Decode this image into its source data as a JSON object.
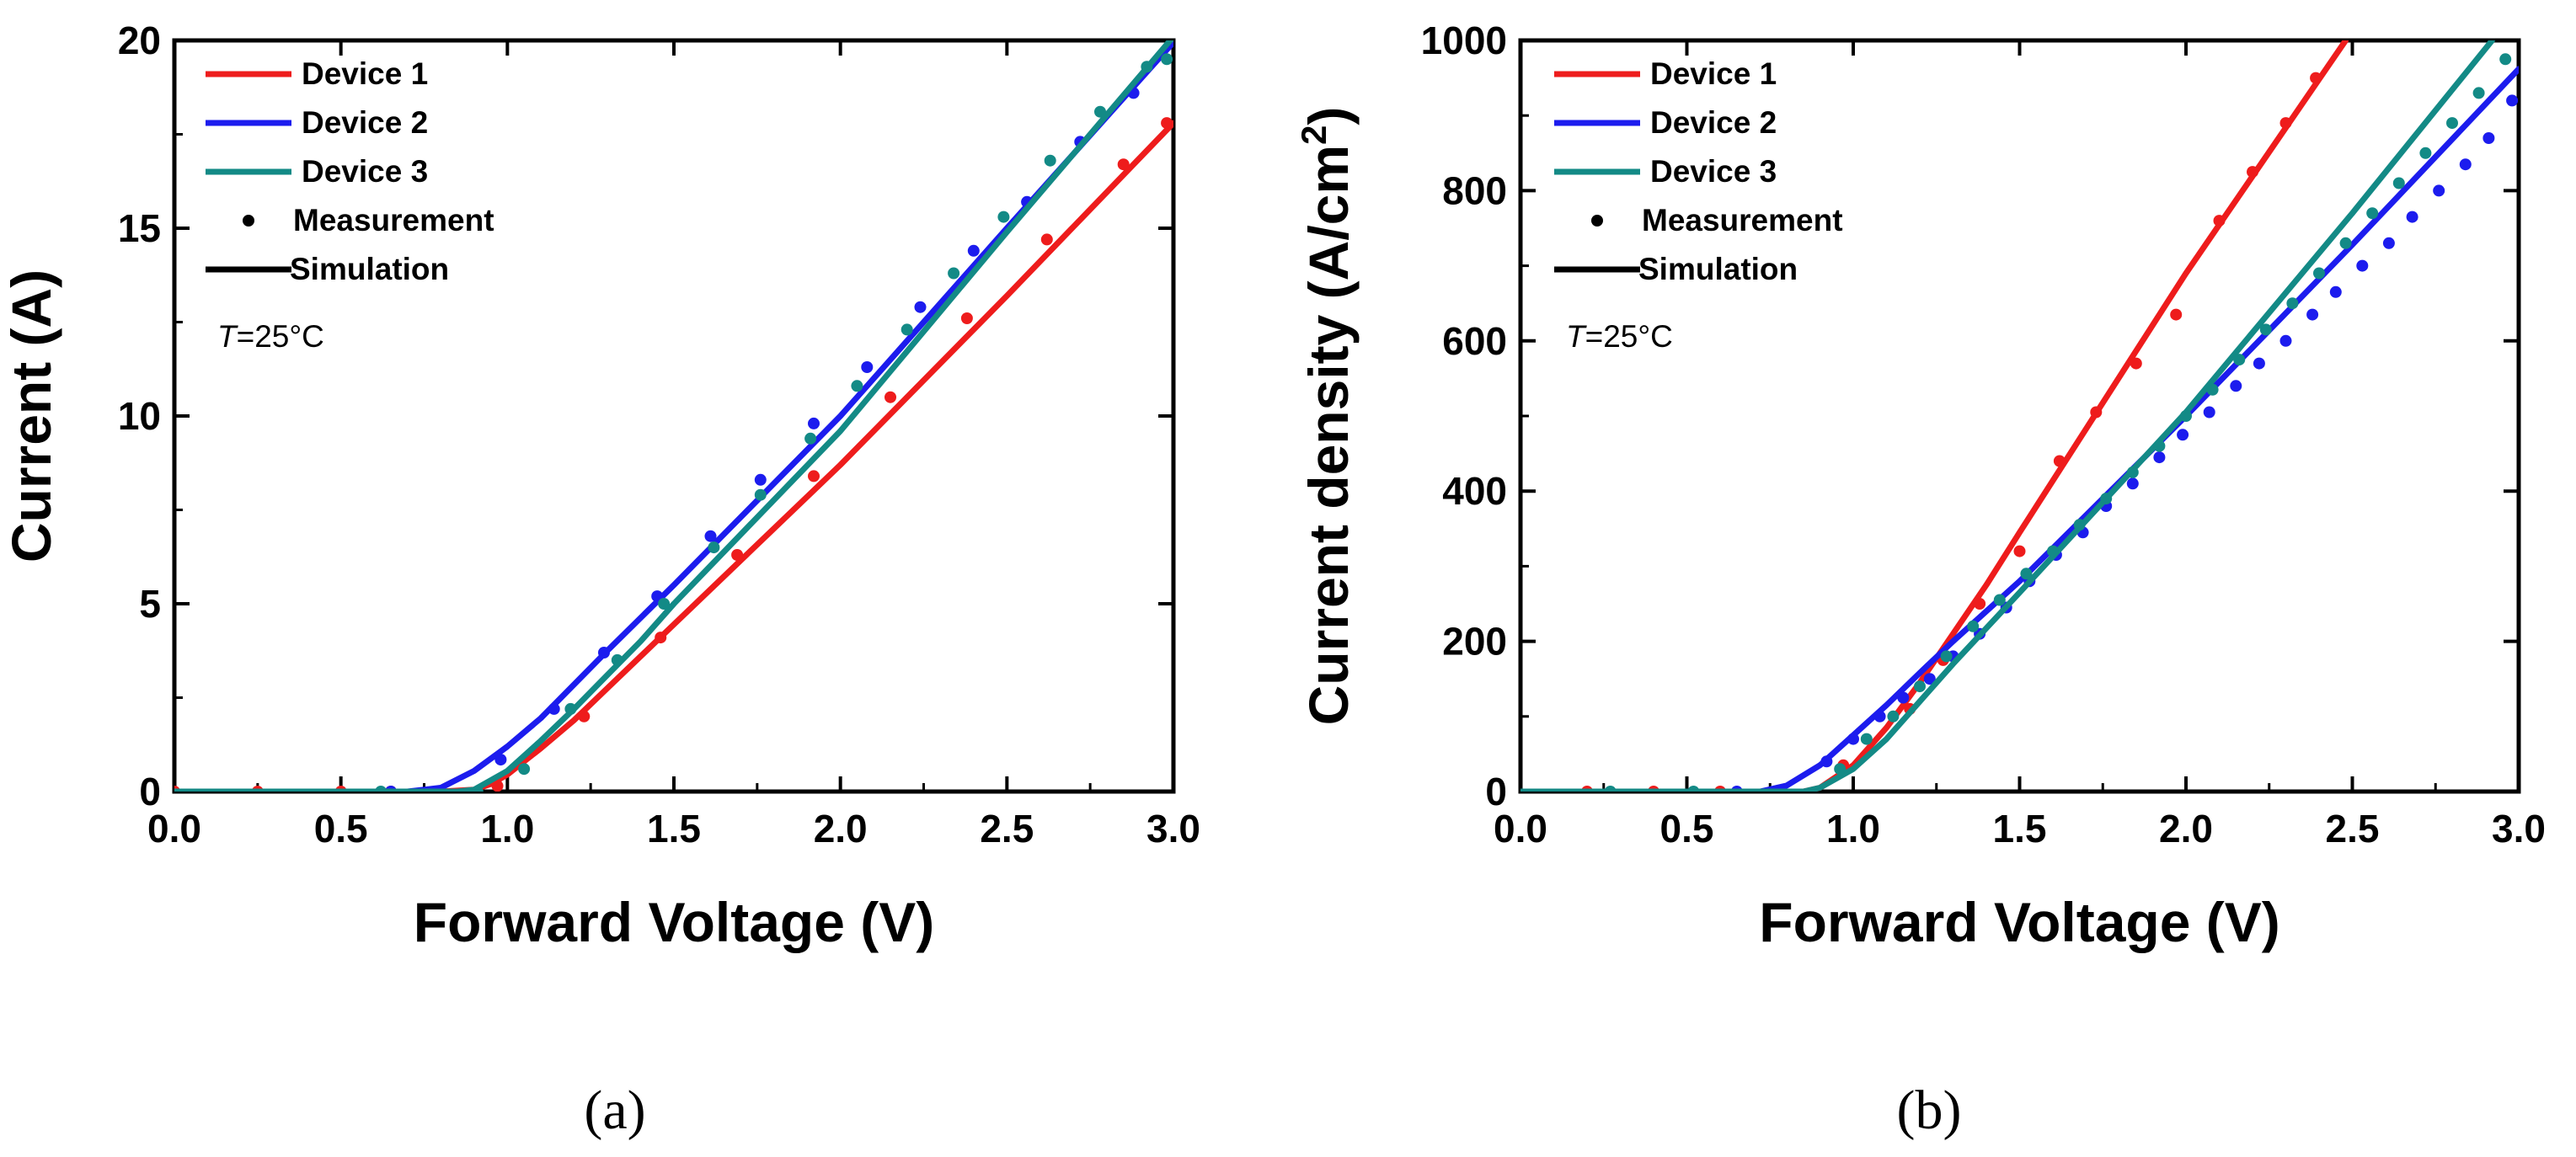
{
  "chart_data": [
    {
      "type": "line",
      "caption": "(a)",
      "title": "",
      "xlabel": "Forward Voltage (V)",
      "ylabel": "Current (A)",
      "xlim": [
        0,
        3.0
      ],
      "ylim": [
        0,
        20
      ],
      "xticks": [
        0.0,
        0.5,
        1.0,
        1.5,
        2.0,
        2.5,
        3.0
      ],
      "xtick_labels": [
        "0.0",
        "0.5",
        "1.0",
        "1.5",
        "2.0",
        "2.5",
        "3.0"
      ],
      "yticks": [
        0,
        5,
        10,
        15,
        20
      ],
      "ytick_labels": [
        "0",
        "5",
        "10",
        "15",
        "20"
      ],
      "annotation": {
        "italic": "T",
        "rest": "=25°C"
      },
      "legend": {
        "placement": "top-left",
        "entries": [
          {
            "label": "Device 1",
            "kind": "line",
            "color": "#ee1c1c"
          },
          {
            "label": "Device 2",
            "kind": "line",
            "color": "#1c1cee"
          },
          {
            "label": "Device 3",
            "kind": "line",
            "color": "#138a86"
          },
          {
            "label": "Measurement",
            "kind": "dot",
            "color": "#000000"
          },
          {
            "label": "Simulation",
            "kind": "line",
            "color": "#000000"
          }
        ]
      },
      "series": [
        {
          "name": "Device 1",
          "color": "#ee1c1c",
          "simulation": {
            "x": [
              0,
              0.8,
              0.9,
              0.95,
              1.0,
              1.1,
              1.2,
              1.3,
              1.5,
              2.0,
              2.5,
              3.0
            ],
            "y": [
              0,
              0,
              0.05,
              0.2,
              0.45,
              1.15,
              1.9,
              2.75,
              4.45,
              8.7,
              13.2,
              17.8
            ]
          },
          "measurement": {
            "x": [
              0.0,
              0.25,
              0.5,
              0.65,
              0.97,
              1.23,
              1.46,
              1.69,
              1.92,
              2.15,
              2.38,
              2.62,
              2.85,
              2.98
            ],
            "y": [
              0,
              0,
              0,
              0,
              0.15,
              2.0,
              4.1,
              6.3,
              8.4,
              10.5,
              12.6,
              14.7,
              16.7,
              17.8
            ]
          }
        },
        {
          "name": "Device 2",
          "color": "#1c1cee",
          "simulation": {
            "x": [
              0,
              0.7,
              0.8,
              0.9,
              1.0,
              1.1,
              1.2,
              1.3,
              1.5,
              2.0,
              2.5,
              3.0
            ],
            "y": [
              0,
              0,
              0.1,
              0.55,
              1.2,
              1.95,
              2.85,
              3.75,
              5.5,
              10.0,
              15.0,
              19.95
            ]
          },
          "measurement": {
            "x": [
              0.65,
              0.98,
              1.14,
              1.29,
              1.45,
              1.61,
              1.76,
              1.92,
              2.08,
              2.24,
              2.4,
              2.56,
              2.72,
              2.88
            ],
            "y": [
              0.0,
              0.85,
              2.2,
              3.7,
              5.2,
              6.8,
              8.3,
              9.8,
              11.3,
              12.9,
              14.4,
              15.7,
              17.3,
              18.6
            ]
          }
        },
        {
          "name": "Device 3",
          "color": "#138a86",
          "simulation": {
            "x": [
              0,
              0.85,
              0.9,
              1.0,
              1.1,
              1.2,
              1.3,
              1.4,
              1.5,
              2.0,
              2.5,
              3.0
            ],
            "y": [
              0,
              0,
              0.05,
              0.55,
              1.35,
              2.2,
              3.1,
              4.0,
              5.0,
              9.6,
              14.9,
              20.1
            ]
          },
          "measurement": {
            "x": [
              0.62,
              0.91,
              1.05,
              1.19,
              1.33,
              1.47,
              1.62,
              1.76,
              1.91,
              2.05,
              2.2,
              2.34,
              2.49,
              2.63,
              2.78,
              2.92,
              2.98
            ],
            "y": [
              0.0,
              0.0,
              0.6,
              2.2,
              3.5,
              5.0,
              6.5,
              7.9,
              9.4,
              10.8,
              12.3,
              13.8,
              15.3,
              16.8,
              18.1,
              19.3,
              19.5
            ]
          }
        }
      ]
    },
    {
      "type": "line",
      "caption": "(b)",
      "title": "",
      "xlabel": "Forward Voltage (V)",
      "ylabel": "Current density (A/cm",
      "ylabel_sup": "2",
      "ylabel_tail": ")",
      "xlim": [
        0,
        3.0
      ],
      "ylim": [
        0,
        1000
      ],
      "xticks": [
        0.0,
        0.5,
        1.0,
        1.5,
        2.0,
        2.5,
        3.0
      ],
      "xtick_labels": [
        "0.0",
        "0.5",
        "1.0",
        "1.5",
        "2.0",
        "2.5",
        "3.0"
      ],
      "yticks": [
        0,
        200,
        400,
        600,
        800,
        1000
      ],
      "ytick_labels": [
        "0",
        "200",
        "400",
        "600",
        "800",
        "1000"
      ],
      "annotation": {
        "italic": "T",
        "rest": "=25°C"
      },
      "legend": {
        "placement": "top-left",
        "entries": [
          {
            "label": "Device 1",
            "kind": "line",
            "color": "#ee1c1c"
          },
          {
            "label": "Device 2",
            "kind": "line",
            "color": "#1c1cee"
          },
          {
            "label": "Device 3",
            "kind": "line",
            "color": "#138a86"
          },
          {
            "label": "Measurement",
            "kind": "dot",
            "color": "#000000"
          },
          {
            "label": "Simulation",
            "kind": "line",
            "color": "#000000"
          }
        ]
      },
      "series": [
        {
          "name": "Device 1",
          "color": "#ee1c1c",
          "simulation": {
            "x": [
              0,
              0.85,
              0.9,
              1.0,
              1.1,
              1.2,
              1.3,
              1.4,
              1.5,
              2.0,
              2.48
            ],
            "y": [
              0,
              0,
              5,
              35,
              85,
              145,
              210,
              275,
              345,
              690,
              1000
            ]
          },
          "measurement": {
            "x": [
              0.2,
              0.4,
              0.6,
              0.97,
              1.17,
              1.27,
              1.38,
              1.5,
              1.62,
              1.73,
              1.85,
              1.97,
              2.1,
              2.2,
              2.3,
              2.39
            ],
            "y": [
              0,
              0,
              0,
              35,
              110,
              175,
              250,
              320,
              440,
              505,
              570,
              635,
              760,
              825,
              890,
              950
            ]
          }
        },
        {
          "name": "Device 2",
          "color": "#1c1cee",
          "simulation": {
            "x": [
              0,
              0.72,
              0.8,
              0.9,
              1.0,
              1.1,
              1.2,
              1.3,
              1.5,
              2.0,
              2.5,
              3.0
            ],
            "y": [
              0,
              0,
              8,
              35,
              75,
              115,
              158,
              200,
              280,
              500,
              728,
              962
            ]
          },
          "measurement": {
            "x": [
              0.65,
              0.92,
              1.0,
              1.08,
              1.15,
              1.23,
              1.3,
              1.38,
              1.46,
              1.53,
              1.61,
              1.69,
              1.76,
              1.84,
              1.92,
              1.99,
              2.07,
              2.15,
              2.22,
              2.3,
              2.38,
              2.45,
              2.53,
              2.61,
              2.68,
              2.76,
              2.84,
              2.91,
              2.98
            ],
            "y": [
              0,
              40,
              70,
              100,
              125,
              150,
              180,
              210,
              245,
              280,
              315,
              345,
              380,
              410,
              445,
              475,
              505,
              540,
              570,
              600,
              635,
              665,
              700,
              730,
              765,
              800,
              835,
              870,
              920
            ]
          }
        },
        {
          "name": "Device 3",
          "color": "#138a86",
          "simulation": {
            "x": [
              0,
              0.85,
              0.9,
              1.0,
              1.1,
              1.2,
              1.3,
              1.5,
              2.0,
              2.5,
              2.92
            ],
            "y": [
              0,
              0,
              5,
              30,
              70,
              120,
              170,
              265,
              505,
              770,
              1000
            ]
          },
          "measurement": {
            "x": [
              0.27,
              0.52,
              0.96,
              1.04,
              1.12,
              1.2,
              1.28,
              1.36,
              1.44,
              1.52,
              1.6,
              1.68,
              1.76,
              1.84,
              1.92,
              2.0,
              2.08,
              2.16,
              2.24,
              2.32,
              2.4,
              2.48,
              2.56,
              2.64,
              2.72,
              2.8,
              2.88,
              2.96
            ],
            "y": [
              0,
              0,
              30,
              70,
              100,
              140,
              180,
              220,
              255,
              290,
              320,
              355,
              390,
              425,
              460,
              500,
              535,
              575,
              615,
              650,
              690,
              730,
              770,
              810,
              850,
              890,
              930,
              975
            ]
          }
        }
      ]
    }
  ]
}
